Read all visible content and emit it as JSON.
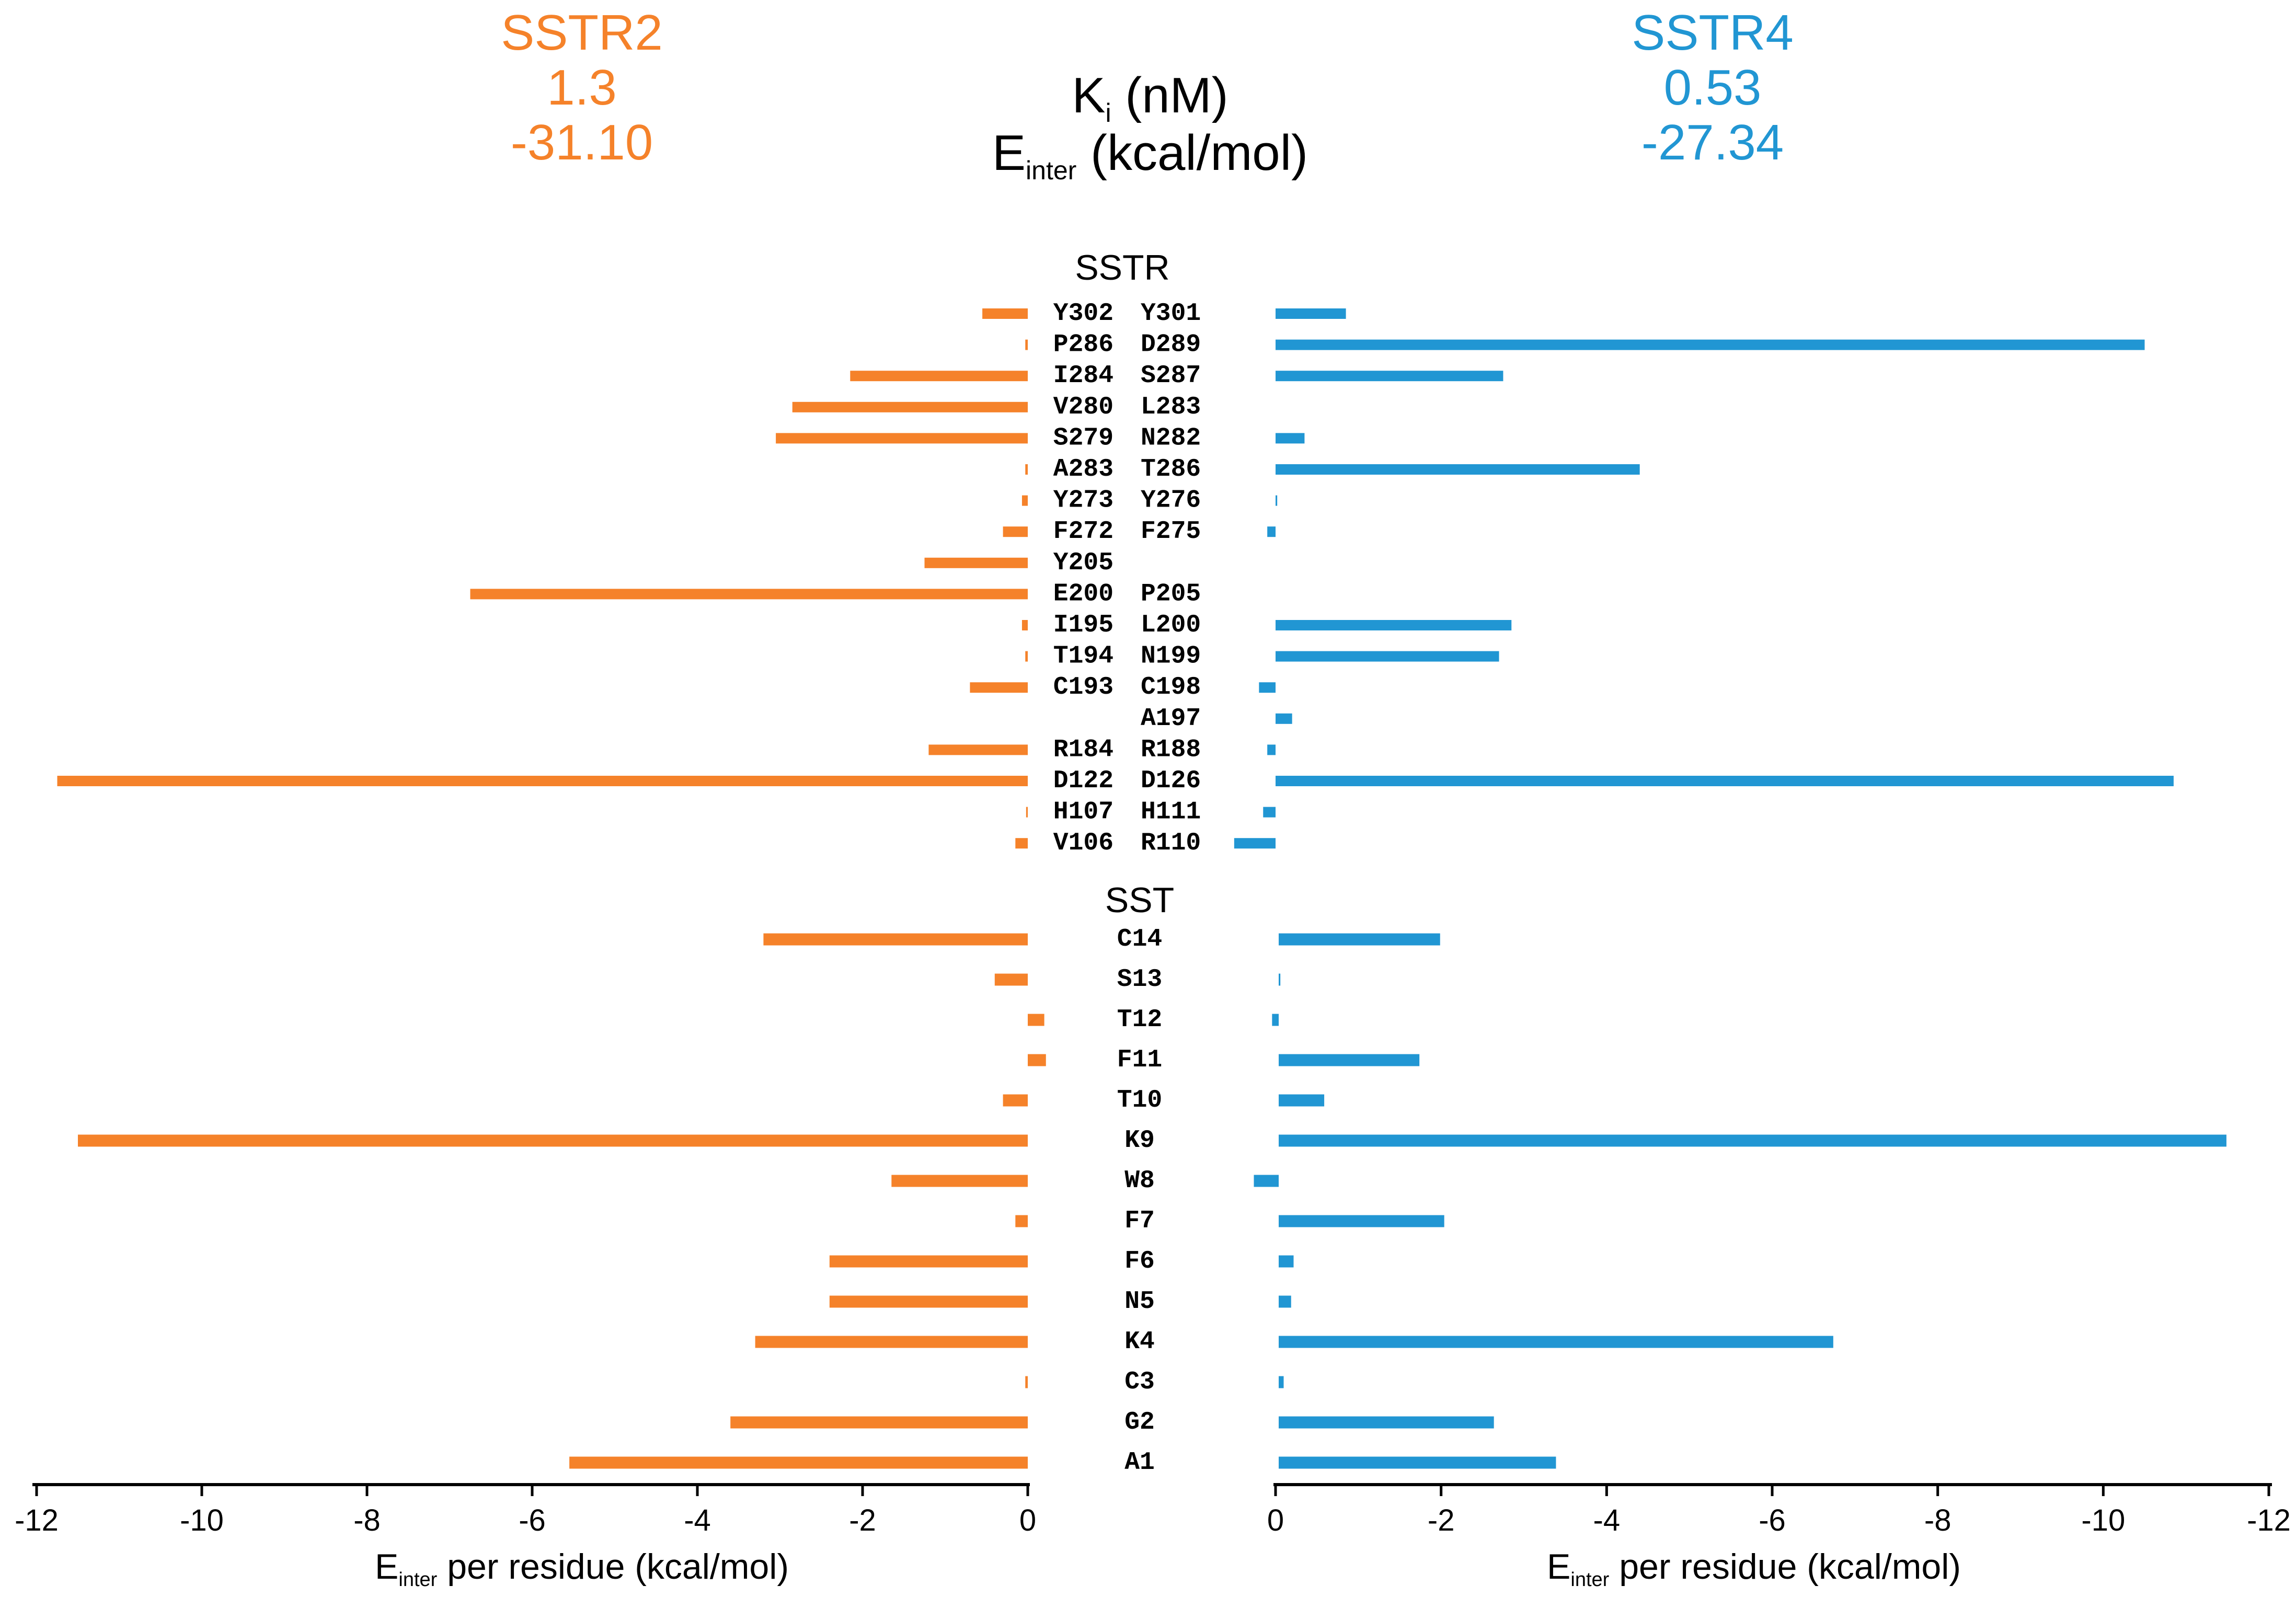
{
  "header": {
    "left": {
      "name": "SSTR2",
      "ki": "1.3",
      "einter": "-31.10"
    },
    "center": {
      "ki_label": "K",
      "ki_sub": "i",
      "ki_unit": " (nM)",
      "e_label": "E",
      "e_sub": "inter",
      "e_unit": " (kcal/mol)"
    },
    "right": {
      "name": "SSTR4",
      "ki": "0.53",
      "einter": "-27.34"
    }
  },
  "colors": {
    "sstr2": "#f5822a",
    "sstr4": "#2196d3",
    "axis": "#000000"
  },
  "chart_data": {
    "type": "bar",
    "orientation": "horizontal",
    "section_labels": {
      "receptor": "SSTR",
      "peptide": "SST"
    },
    "receptor_rows": [
      {
        "left_label": "Y302",
        "right_label": "Y301",
        "sstr2": -0.55,
        "sstr4": -0.85
      },
      {
        "left_label": "P286",
        "right_label": "D289",
        "sstr2": -0.03,
        "sstr4": -10.5
      },
      {
        "left_label": "I284",
        "right_label": "S287",
        "sstr2": -2.15,
        "sstr4": -2.75
      },
      {
        "left_label": "V280",
        "right_label": "L283",
        "sstr2": -2.85,
        "sstr4": null
      },
      {
        "left_label": "S279",
        "right_label": "N282",
        "sstr2": -3.05,
        "sstr4": -0.35
      },
      {
        "left_label": "A283",
        "right_label": "T286",
        "sstr2": -0.03,
        "sstr4": -4.4
      },
      {
        "left_label": "Y273",
        "right_label": "Y276",
        "sstr2": -0.07,
        "sstr4": -0.02
      },
      {
        "left_label": "F272",
        "right_label": "F275",
        "sstr2": -0.3,
        "sstr4": 0.1
      },
      {
        "left_label": "Y205",
        "right_label": "",
        "sstr2": -1.25,
        "sstr4": null
      },
      {
        "left_label": "E200",
        "right_label": "P205",
        "sstr2": -6.75,
        "sstr4": null
      },
      {
        "left_label": "I195",
        "right_label": "L200",
        "sstr2": -0.07,
        "sstr4": -2.85
      },
      {
        "left_label": "T194",
        "right_label": "N199",
        "sstr2": -0.03,
        "sstr4": -2.7
      },
      {
        "left_label": "C193",
        "right_label": "C198",
        "sstr2": -0.7,
        "sstr4": 0.2
      },
      {
        "left_label": "",
        "right_label": "A197",
        "sstr2": null,
        "sstr4": -0.2
      },
      {
        "left_label": "R184",
        "right_label": "R188",
        "sstr2": -1.2,
        "sstr4": 0.1
      },
      {
        "left_label": "D122",
        "right_label": "D126",
        "sstr2": -11.75,
        "sstr4": -10.85
      },
      {
        "left_label": "H107",
        "right_label": "H111",
        "sstr2": -0.02,
        "sstr4": 0.15
      },
      {
        "left_label": "V106",
        "right_label": "R110",
        "sstr2": -0.15,
        "sstr4": 0.5
      }
    ],
    "peptide_rows": [
      {
        "label": "C14",
        "sstr2": -3.2,
        "sstr4": -1.95
      },
      {
        "label": "S13",
        "sstr2": -0.4,
        "sstr4": -0.02
      },
      {
        "label": "T12",
        "sstr2": 0.2,
        "sstr4": 0.08
      },
      {
        "label": "F11",
        "sstr2": 0.22,
        "sstr4": -1.7
      },
      {
        "label": "T10",
        "sstr2": -0.3,
        "sstr4": -0.55
      },
      {
        "label": "K9",
        "sstr2": -11.5,
        "sstr4": -11.45
      },
      {
        "label": "W8",
        "sstr2": -1.65,
        "sstr4": 0.3
      },
      {
        "label": "F7",
        "sstr2": -0.15,
        "sstr4": -2.0
      },
      {
        "label": "F6",
        "sstr2": -2.4,
        "sstr4": -0.18
      },
      {
        "label": "N5",
        "sstr2": -2.4,
        "sstr4": -0.15
      },
      {
        "label": "K4",
        "sstr2": -3.3,
        "sstr4": -6.7
      },
      {
        "label": "C3",
        "sstr2": -0.03,
        "sstr4": -0.06
      },
      {
        "label": "G2",
        "sstr2": -3.6,
        "sstr4": -2.6
      },
      {
        "label": "A1",
        "sstr2": -5.55,
        "sstr4": -3.35
      }
    ],
    "left_axis": {
      "ticks": [
        -12,
        -10,
        -8,
        -6,
        -4,
        -2,
        0
      ],
      "tick_labels": [
        "-12",
        "-10",
        "-8",
        "-6",
        "-4",
        "-2",
        "0"
      ],
      "xlim": [
        -12,
        0
      ]
    },
    "right_axis": {
      "ticks": [
        0,
        -2,
        -4,
        -6,
        -8,
        -10,
        -12
      ],
      "tick_labels": [
        "0",
        "-2",
        "-4",
        "-6",
        "-8",
        "-10",
        "-12"
      ],
      "xlim": [
        0,
        -12
      ]
    },
    "xlabel": {
      "main": "E",
      "sub": "inter",
      "rest": " per residue (kcal/mol)"
    }
  }
}
